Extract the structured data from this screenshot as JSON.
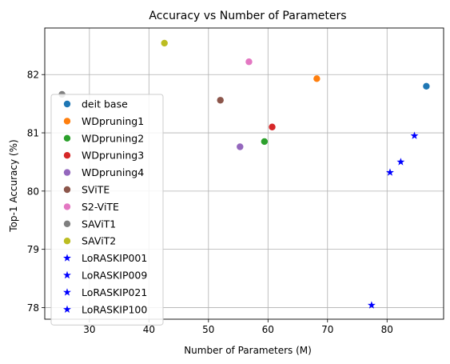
{
  "chart_data": {
    "type": "scatter",
    "title": "Accuracy vs Number of Parameters",
    "xlabel": "Number of Parameters (M)",
    "ylabel": "Top-1 Accuracy (%)",
    "xlim": [
      22.5,
      89.5
    ],
    "ylim": [
      77.8,
      82.8
    ],
    "xticks": [
      30,
      40,
      50,
      60,
      70,
      80
    ],
    "yticks": [
      78,
      79,
      80,
      81,
      82
    ],
    "grid": true,
    "legend_position": "center-left",
    "series": [
      {
        "name": "deit base",
        "marker": "circle",
        "color": "#1f77b4",
        "points": [
          {
            "x": 86.6,
            "y": 81.8
          }
        ]
      },
      {
        "name": "WDpruning1",
        "marker": "circle",
        "color": "#ff7f0e",
        "points": [
          {
            "x": 68.2,
            "y": 81.93
          }
        ]
      },
      {
        "name": "WDpruning2",
        "marker": "circle",
        "color": "#2ca02c",
        "points": [
          {
            "x": 59.4,
            "y": 80.85
          }
        ]
      },
      {
        "name": "WDpruning3",
        "marker": "circle",
        "color": "#d62728",
        "points": [
          {
            "x": 60.7,
            "y": 81.1
          }
        ]
      },
      {
        "name": "WDpruning4",
        "marker": "circle",
        "color": "#9467bd",
        "points": [
          {
            "x": 55.3,
            "y": 80.76
          }
        ]
      },
      {
        "name": "SViTE",
        "marker": "circle",
        "color": "#8c564b",
        "points": [
          {
            "x": 52.0,
            "y": 81.56
          }
        ]
      },
      {
        "name": "S2-ViTE",
        "marker": "circle",
        "color": "#e377c2",
        "points": [
          {
            "x": 56.8,
            "y": 82.22
          }
        ]
      },
      {
        "name": "SAViT1",
        "marker": "circle",
        "color": "#7f7f7f",
        "points": [
          {
            "x": 25.4,
            "y": 81.66
          }
        ]
      },
      {
        "name": "SAViT2",
        "marker": "circle",
        "color": "#bcbd22",
        "points": [
          {
            "x": 42.6,
            "y": 82.54
          }
        ]
      },
      {
        "name": "LoRASKIP001",
        "marker": "star",
        "color": "#0000ff",
        "points": [
          {
            "x": 84.6,
            "y": 80.95
          }
        ]
      },
      {
        "name": "LoRASKIP009",
        "marker": "star",
        "color": "#0000ff",
        "points": [
          {
            "x": 82.3,
            "y": 80.5
          }
        ]
      },
      {
        "name": "LoRASKIP021",
        "marker": "star",
        "color": "#0000ff",
        "points": [
          {
            "x": 80.5,
            "y": 80.32
          }
        ]
      },
      {
        "name": "LoRASKIP100",
        "marker": "star",
        "color": "#0000ff",
        "points": [
          {
            "x": 77.4,
            "y": 78.04
          }
        ]
      }
    ]
  }
}
